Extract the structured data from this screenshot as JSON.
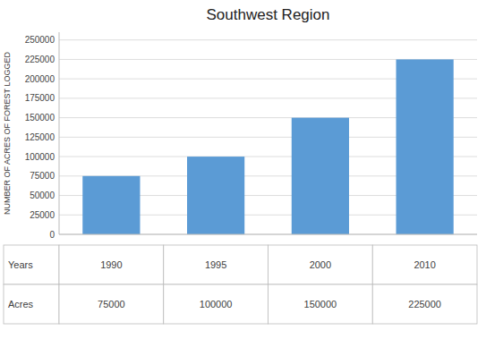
{
  "chart_data": {
    "type": "bar",
    "title": "Southwest Region",
    "y_label": "NUMBER OF ACRES OF FOREST LOGGED",
    "categories": [
      "1990",
      "1995",
      "2000",
      "2010"
    ],
    "values": [
      75000,
      100000,
      150000,
      225000
    ],
    "color": "#5B9BD5",
    "ylim": [
      0,
      260000
    ],
    "yticks": [
      0,
      25000,
      50000,
      75000,
      100000,
      125000,
      150000,
      175000,
      200000,
      225000,
      250000
    ],
    "grid": true,
    "tick_labels": "y",
    "row_labels": [
      "Years",
      "Acres"
    ]
  }
}
